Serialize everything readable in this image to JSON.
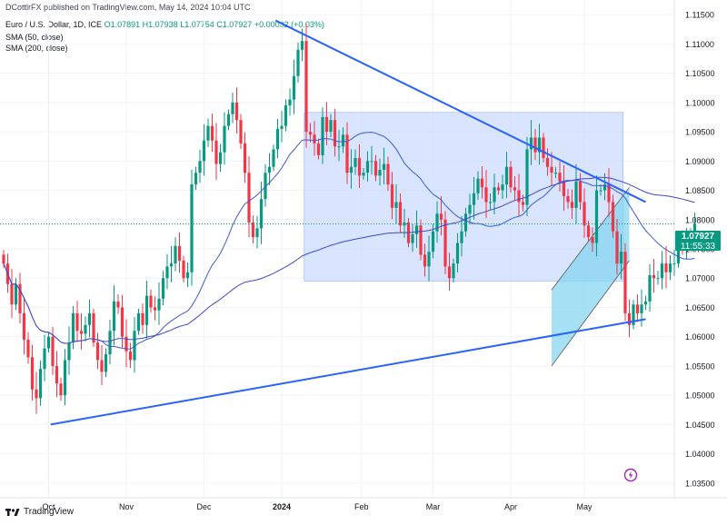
{
  "header": {
    "published": "DCottlrFX published on TradingView.com, May 14, 2024 10:04 UTC"
  },
  "ohlc": {
    "symbol": "Euro / U.S. Dollar, 1D, ICE",
    "open": "O1.07891",
    "high": "H1.07938",
    "low": "L1.07754",
    "close": "C1.07927",
    "change": "+0.00032 (+0.03%)"
  },
  "indicators": {
    "sma50": "SMA (50, close)",
    "sma200": "SMA (200, close)"
  },
  "price_tag": {
    "price": "1.07927",
    "countdown": "11:55:33"
  },
  "footer": {
    "brand": "TradingView"
  },
  "colors": {
    "up": "#089981",
    "down": "#f23645",
    "trendline": "#2962ff",
    "sma": "#3c5bd6",
    "box_fill": "#c5d6ff",
    "channel_fill": "#7fd3f0"
  },
  "chart_data": {
    "type": "candlestick",
    "x_tick_labels": [
      "Oct",
      "Nov",
      "Dec",
      "2024",
      "Feb",
      "Mar",
      "Apr",
      "May"
    ],
    "y_tick_labels": [
      "1.11500",
      "1.11000",
      "1.10500",
      "1.10000",
      "1.09500",
      "1.09000",
      "1.08500",
      "1.08000",
      "1.07500",
      "1.07000",
      "1.06500",
      "1.06000",
      "1.05500",
      "1.05000",
      "1.04500",
      "1.04000",
      "1.03500"
    ],
    "y_ticks": [
      1.115,
      1.11,
      1.105,
      1.1,
      1.095,
      1.09,
      1.085,
      1.08,
      1.075,
      1.07,
      1.065,
      1.06,
      1.055,
      1.05,
      1.045,
      1.04,
      1.035
    ],
    "ylim": [
      1.0325,
      1.1175
    ],
    "last_close": 1.07927,
    "series": [
      {
        "name": "Euro / U.S. Dollar",
        "type": "candles",
        "close": [
          1.0725,
          1.069,
          1.0655,
          1.069,
          1.064,
          1.0595,
          1.0565,
          1.051,
          1.0495,
          1.0545,
          1.058,
          1.06,
          1.055,
          1.052,
          1.05,
          1.056,
          1.059,
          1.064,
          1.061,
          1.0605,
          1.062,
          1.064,
          1.059,
          1.056,
          1.054,
          1.057,
          1.061,
          1.066,
          1.065,
          1.06,
          1.0575,
          1.056,
          1.061,
          1.064,
          1.062,
          1.067,
          1.065,
          1.0645,
          1.0665,
          1.07,
          1.072,
          1.0725,
          1.0755,
          1.073,
          1.07,
          1.071,
          1.086,
          1.088,
          1.09,
          1.0935,
          1.096,
          1.0935,
          1.0895,
          1.0915,
          1.096,
          1.098,
          1.1,
          1.097,
          1.093,
          1.088,
          1.0795,
          1.077,
          1.0785,
          1.0835,
          1.088,
          1.089,
          1.092,
          1.0955,
          1.096,
          1.0995,
          1.1005,
          1.1045,
          1.109,
          1.1105,
          1.095,
          1.0945,
          1.093,
          1.091,
          1.0975,
          1.095,
          1.097,
          1.0925,
          1.0925,
          1.0945,
          1.088,
          1.089,
          1.0905,
          1.0875,
          1.088,
          1.09,
          1.09,
          1.0875,
          1.0885,
          1.0895,
          1.086,
          1.082,
          1.083,
          1.079,
          1.0795,
          1.076,
          1.0775,
          1.079,
          1.074,
          1.072,
          1.0745,
          1.078,
          1.081,
          1.08,
          1.072,
          1.07,
          1.0725,
          1.076,
          1.078,
          1.081,
          1.0825,
          1.0845,
          1.087,
          1.0855,
          1.083,
          1.083,
          1.0855,
          1.085,
          1.086,
          1.089,
          1.0855,
          1.085,
          1.083,
          1.0825,
          1.092,
          1.094,
          1.0915,
          1.094,
          1.0905,
          1.089,
          1.088,
          1.088,
          1.0865,
          1.084,
          1.083,
          1.082,
          1.0865,
          1.083,
          1.079,
          1.077,
          1.076,
          1.085,
          1.085,
          1.086,
          1.083,
          1.078,
          1.0725,
          1.0745,
          1.064,
          1.062,
          1.0655,
          1.064,
          1.0655,
          1.066,
          1.0705,
          1.07,
          1.07,
          1.0725,
          1.071,
          1.0725,
          1.0725,
          1.0765,
          1.0755,
          1.076,
          1.0775,
          1.0793
        ]
      },
      {
        "name": "SMA (50, close)",
        "type": "line"
      },
      {
        "name": "SMA (200, close)",
        "type": "line"
      }
    ],
    "annotations": [
      {
        "kind": "trendline",
        "from": {
          "bar": 133,
          "price": 1.114
        },
        "to": {
          "bar": 314,
          "price": 1.083
        }
      },
      {
        "kind": "trendline",
        "from": {
          "bar": 23,
          "price": 1.045
        },
        "to": {
          "bar": 314,
          "price": 1.063
        }
      },
      {
        "kind": "rectangle",
        "from": {
          "bar": 147,
          "price": 1.0983
        },
        "to": {
          "bar": 303,
          "price": 1.0695
        }
      },
      {
        "kind": "parallel_channel",
        "lower": [
          {
            "bar": 268,
            "price": 1.055
          },
          {
            "bar": 306,
            "price": 1.073
          }
        ],
        "upper": [
          {
            "bar": 268,
            "price": 1.068
          },
          {
            "bar": 306,
            "price": 1.0855
          }
        ]
      }
    ],
    "grid": true
  }
}
